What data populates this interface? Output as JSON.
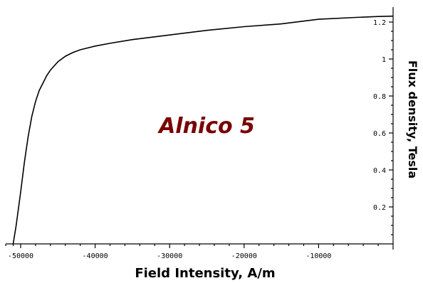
{
  "chart_data": {
    "type": "line",
    "title": "",
    "xlabel": "Field Intensity, A/m",
    "ylabel": "Flux density, Tesla",
    "xlim": [
      -52000,
      0
    ],
    "ylim": [
      0,
      1.25
    ],
    "x_ticks": [
      {
        "value": -50000,
        "label": "-50000"
      },
      {
        "value": -40000,
        "label": "-40000"
      },
      {
        "value": -30000,
        "label": "-30000"
      },
      {
        "value": -20000,
        "label": "-20000"
      },
      {
        "value": -10000,
        "label": "-10000"
      }
    ],
    "y_ticks": [
      {
        "value": 0.2,
        "label": "0.2"
      },
      {
        "value": 0.4,
        "label": "0.4"
      },
      {
        "value": 0.6,
        "label": "0.6"
      },
      {
        "value": 0.8,
        "label": "0.8"
      },
      {
        "value": 1.0,
        "label": "1"
      },
      {
        "value": 1.2,
        "label": "1.2"
      }
    ],
    "annotation": {
      "text": "Alnico 5",
      "color": "#7a0000",
      "x": -25000,
      "y": 0.6
    },
    "grid": false,
    "series": [
      {
        "x": [
          -51000,
          -50600,
          -50000,
          -49500,
          -49000,
          -48500,
          -48000,
          -47500,
          -47000,
          -46500,
          -46000,
          -45000,
          -44000,
          -43000,
          -42000,
          -40000,
          -38000,
          -35000,
          -30000,
          -25000,
          -20000,
          -15000,
          -10000,
          -5000,
          -2000,
          0
        ],
        "y": [
          0.0,
          0.1,
          0.28,
          0.44,
          0.58,
          0.69,
          0.77,
          0.83,
          0.87,
          0.91,
          0.94,
          0.985,
          1.015,
          1.035,
          1.05,
          1.07,
          1.085,
          1.105,
          1.13,
          1.155,
          1.175,
          1.19,
          1.215,
          1.225,
          1.23,
          1.232
        ]
      }
    ]
  }
}
